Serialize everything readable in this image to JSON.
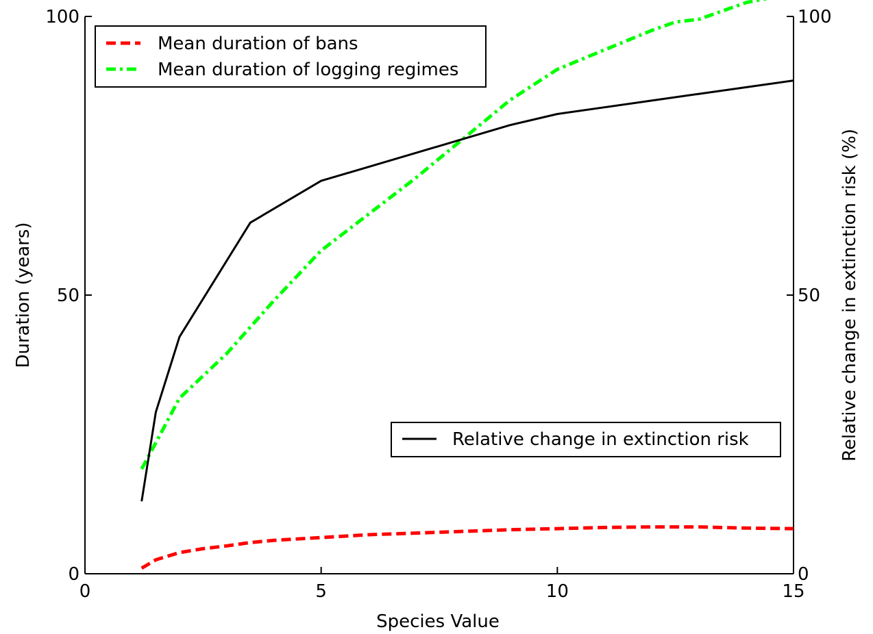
{
  "chart_data": {
    "type": "line",
    "xlabel": "Species Value",
    "ylabel": "Duration (years)",
    "ylabel_right": "Relative change in extinction risk (%)",
    "xlim": [
      0,
      15
    ],
    "ylim": [
      0,
      100
    ],
    "ylim_right": [
      0,
      100
    ],
    "x_ticks": [
      "0",
      "5",
      "10",
      "15"
    ],
    "y_ticks": [
      "0",
      "50",
      "100"
    ],
    "y_ticks_right": [
      "0",
      "50",
      "100"
    ],
    "grid": false,
    "series": [
      {
        "name": "Mean duration of bans",
        "axis": "left",
        "color": "#ff0000",
        "dash": "dashed",
        "x": [
          1.2,
          1.5,
          2.0,
          2.5,
          3.0,
          3.5,
          4.0,
          5.0,
          6.0,
          7.0,
          8.0,
          9.0,
          10.0,
          11.0,
          12.0,
          13.0,
          14.0,
          15.0
        ],
        "y": [
          1.0,
          2.5,
          3.8,
          4.5,
          5.0,
          5.6,
          6.0,
          6.5,
          7.0,
          7.3,
          7.6,
          7.9,
          8.1,
          8.3,
          8.4,
          8.4,
          8.2,
          8.1
        ]
      },
      {
        "name": "Mean duration of logging regimes",
        "axis": "left",
        "color": "#00ff00",
        "dash": "dashdot",
        "x": [
          1.2,
          1.5,
          2.0,
          3.0,
          4.0,
          5.0,
          6.0,
          7.0,
          8.0,
          9.0,
          10.0,
          11.0,
          12.0,
          12.5,
          13.0,
          14.0,
          14.6
        ],
        "y": [
          18.8,
          23.5,
          31.5,
          39.5,
          49.0,
          58.0,
          64.5,
          71.0,
          78.0,
          85.0,
          90.5,
          94.0,
          97.5,
          99.0,
          99.5,
          102.5,
          103.5
        ]
      },
      {
        "name": "Relative change in extinction risk",
        "axis": "right",
        "color": "#000000",
        "dash": "solid",
        "x": [
          1.2,
          1.5,
          2.0,
          3.5,
          5.0,
          6.0,
          7.0,
          8.0,
          9.0,
          10.0,
          11.0,
          12.0,
          13.0,
          14.0,
          15.0
        ],
        "y": [
          13.0,
          29.0,
          42.5,
          63.0,
          70.5,
          73.0,
          75.5,
          78.0,
          80.5,
          82.5,
          83.7,
          84.9,
          86.1,
          87.3,
          88.5
        ]
      }
    ],
    "legends": [
      {
        "placement": "top-left",
        "entries": [
          "Mean duration of bans",
          "Mean duration of logging regimes"
        ]
      },
      {
        "placement": "lower-right",
        "entries": [
          "Relative change in extinction risk"
        ]
      }
    ]
  }
}
